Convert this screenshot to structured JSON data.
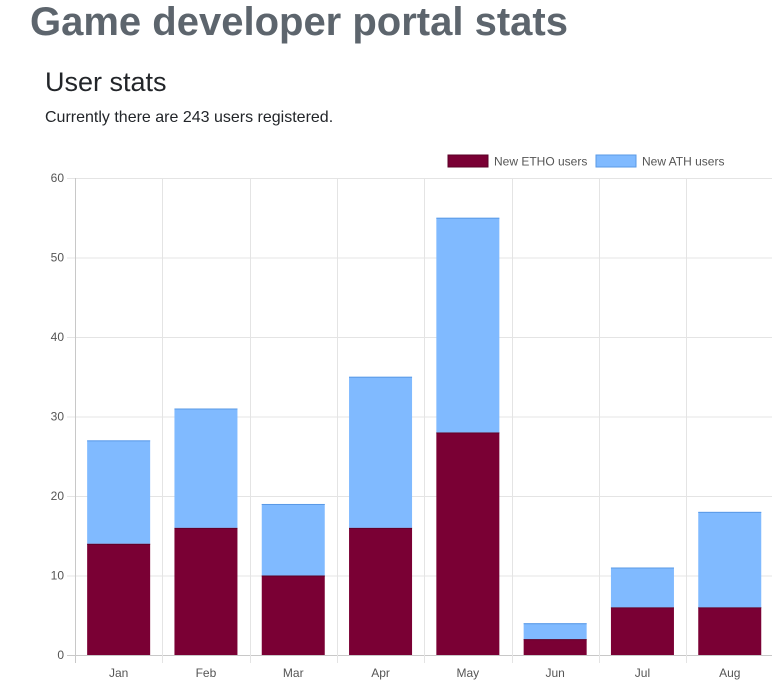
{
  "page": {
    "title": "Game developer portal stats"
  },
  "user_stats": {
    "heading": "User stats",
    "summary": "Currently there are 243 users registered."
  },
  "colors": {
    "etho": "#7a0034",
    "ath": "#80baff",
    "ath_border": "#5a99e6",
    "grid": "#e4e4e4",
    "axis_text": "#555555"
  },
  "chart_data": {
    "type": "bar",
    "stacked": true,
    "title": "",
    "xlabel": "",
    "ylabel": "",
    "categories": [
      "Jan",
      "Feb",
      "Mar",
      "Apr",
      "May",
      "Jun",
      "Jul",
      "Aug"
    ],
    "series": [
      {
        "name": "New ETHO users",
        "values": [
          14,
          16,
          10,
          16,
          28,
          2,
          6,
          6
        ]
      },
      {
        "name": "New ATH users",
        "values": [
          13,
          15,
          9,
          19,
          27,
          2,
          5,
          12
        ]
      }
    ],
    "ylim": [
      0,
      60
    ],
    "yticks": [
      0,
      10,
      20,
      30,
      40,
      50,
      60
    ],
    "grid": true,
    "legend_position": "top-right"
  }
}
